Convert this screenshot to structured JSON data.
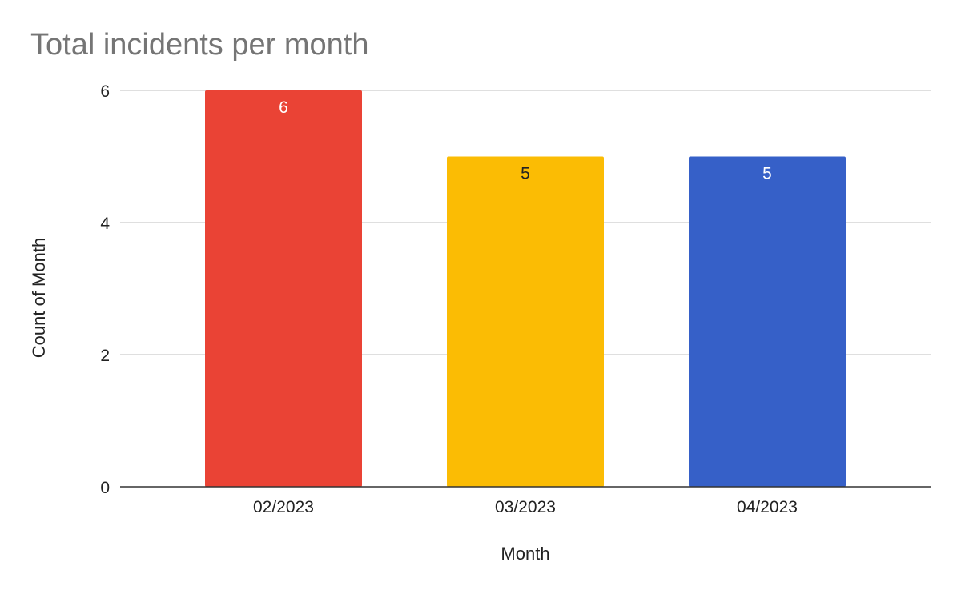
{
  "chart_data": {
    "type": "bar",
    "title": "Total incidents per month",
    "xlabel": "Month",
    "ylabel": "Count of Month",
    "categories": [
      "02/2023",
      "03/2023",
      "04/2023"
    ],
    "values": [
      6,
      5,
      5
    ],
    "colors": [
      "#ea4335",
      "#fbbc04",
      "#3660c8"
    ],
    "label_colors": [
      "#ffffff",
      "#222222",
      "#ffffff"
    ],
    "ylim": [
      0,
      6
    ],
    "y_ticks": [
      0,
      2,
      4,
      6
    ],
    "grid": true,
    "legend": "none"
  }
}
